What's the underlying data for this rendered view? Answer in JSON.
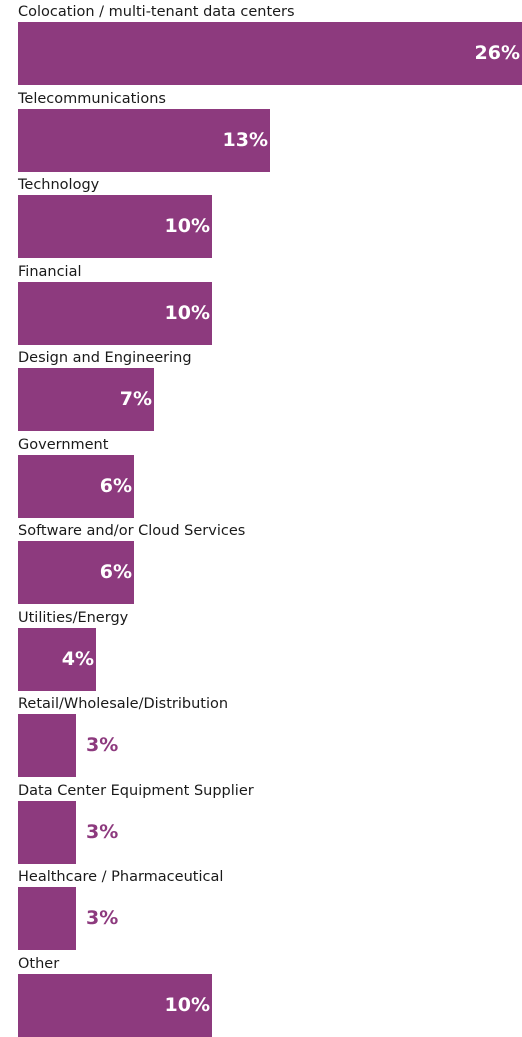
{
  "chart_data": {
    "type": "bar",
    "orientation": "horizontal",
    "categories": [
      "Colocation / multi-tenant data centers",
      "Telecommunications",
      "Technology",
      "Financial",
      "Design and Engineering",
      "Government",
      "Software and/or Cloud Services",
      "Utilities/Energy",
      "Retail/Wholesale/Distribution",
      "Data Center Equipment Supplier",
      "Healthcare / Pharmaceutical",
      "Other"
    ],
    "values": [
      26,
      13,
      10,
      10,
      7,
      6,
      6,
      4,
      3,
      3,
      3,
      10
    ],
    "value_labels": [
      "26%",
      "13%",
      "10%",
      "10%",
      "7%",
      "6%",
      "6%",
      "4%",
      "3%",
      "3%",
      "3%",
      "10%"
    ],
    "unit": "%",
    "xlim": [
      0,
      26
    ],
    "grid": false,
    "legend": "none",
    "colors": {
      "bar": "#8d3a7e",
      "label_inside": "#ffffff",
      "label_outside": "#8d3a7e",
      "category_text": "#1a1a1a"
    }
  }
}
